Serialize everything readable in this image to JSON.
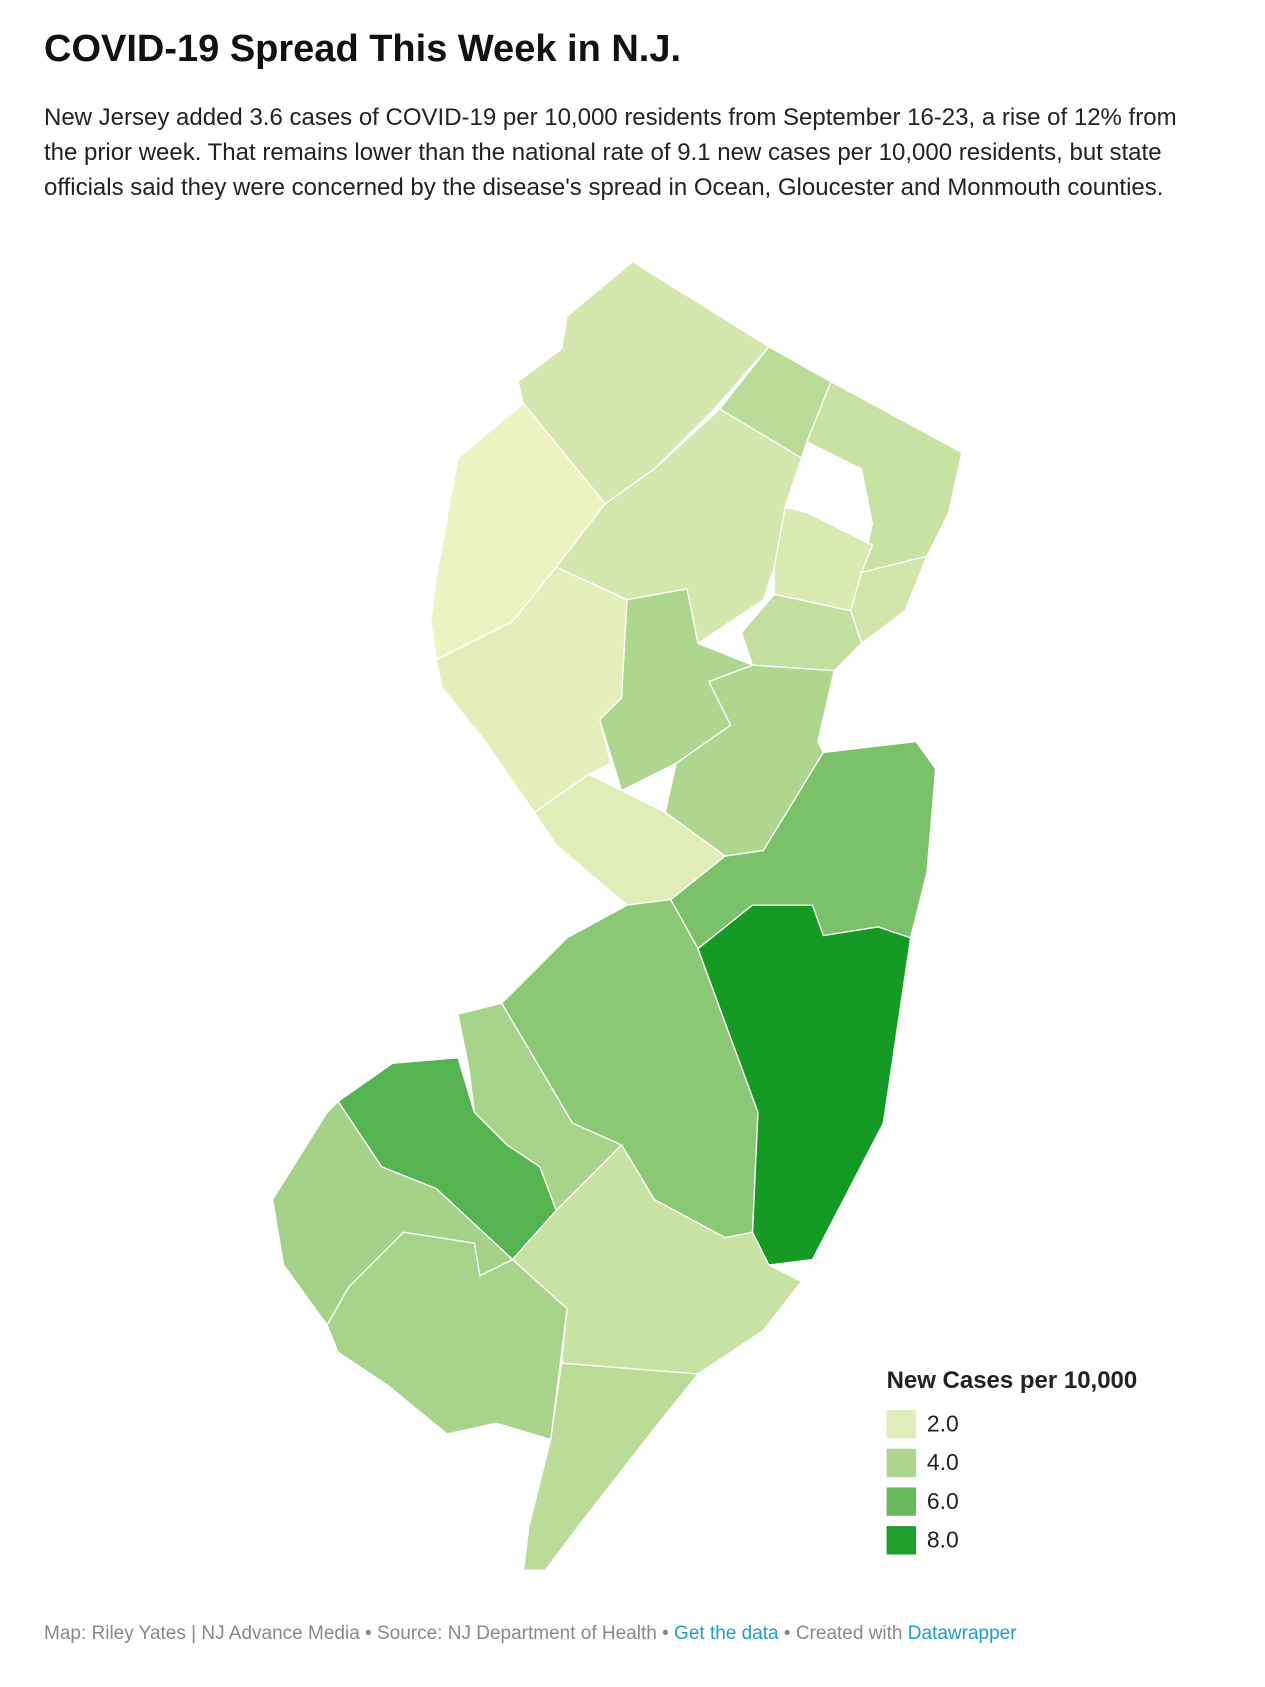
{
  "chart_data": {
    "type": "choropleth",
    "title": "COVID-19 Spread This Week in N.J.",
    "description": "New Jersey added 3.6 cases of COVID-19 per 10,000 residents from September 16-23, a rise of 12% from the prior week. That remains lower than the national rate of 9.1 new cases per 10,000 residents, but state officials said they were concerned by the disease's spread in Ocean, Gloucester and Monmouth counties.",
    "values": [
      2.5,
      3.5,
      3.0,
      1.5,
      2.5,
      2.3,
      2.6,
      3.2,
      1.9,
      4.0,
      4.0,
      2.0,
      5.5,
      8.3,
      5.0,
      4.2,
      6.5,
      4.3,
      4.2,
      3.0,
      3.5
    ],
    "legend": {
      "title": "New Cases per 10,000",
      "stops": [
        {
          "value": 2,
          "label": "2.0"
        },
        {
          "value": 4,
          "label": "4.0"
        },
        {
          "value": 6,
          "label": "6.0"
        },
        {
          "value": 8,
          "label": "8.0"
        }
      ],
      "colors": [
        "#e1edb8",
        "#aed68f",
        "#68ba5d",
        "#1f9e2c"
      ]
    },
    "footer": {
      "source": "Map: Riley Yates | NJ Advance Media • Source: NJ Department of Health •",
      "get_data": "Get the data",
      "created_with": "• Created with",
      "datawrapper": "Datawrapper"
    }
  }
}
